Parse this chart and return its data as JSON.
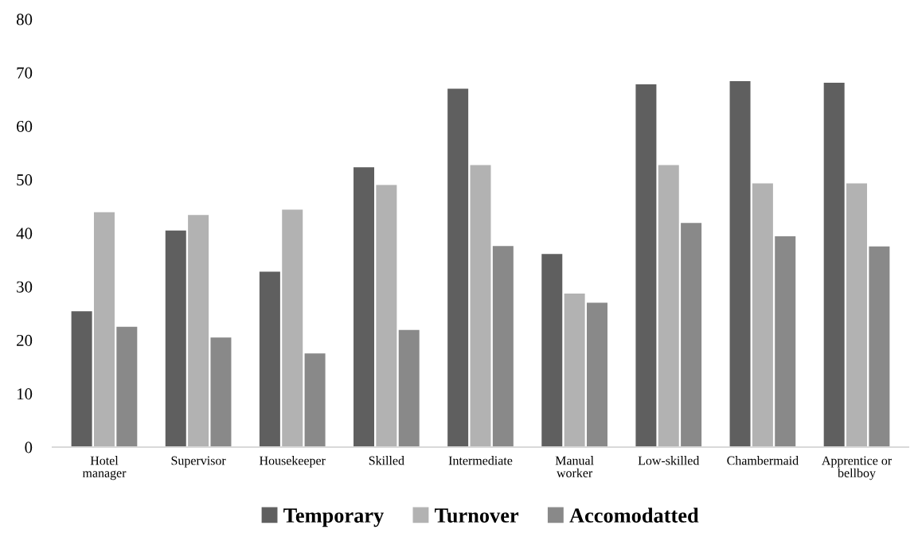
{
  "chart_data": {
    "type": "bar",
    "categories": [
      "Hotel\nmanager",
      "Supervisor",
      "Housekeeper",
      "Skilled",
      "Intermediate",
      "Manual\nworker",
      "Low-skilled",
      "Chambermaid",
      "Apprentice or\nbellboy"
    ],
    "series": [
      {
        "name": "Temporary",
        "color": "#5f5f5f",
        "values": [
          25.4,
          40.5,
          32.8,
          52.3,
          67.0,
          36.1,
          67.8,
          68.4,
          68.1
        ]
      },
      {
        "name": "Turnover",
        "color": "#b2b2b2",
        "values": [
          43.9,
          43.4,
          44.4,
          49.0,
          52.7,
          28.7,
          52.7,
          49.3,
          49.3
        ]
      },
      {
        "name": "Accomodatted",
        "color": "#898989",
        "values": [
          22.5,
          20.5,
          17.5,
          21.9,
          37.6,
          27.0,
          41.9,
          39.4,
          37.5
        ]
      }
    ],
    "ylim": [
      0,
      80
    ],
    "yticks": [
      0,
      10,
      20,
      30,
      40,
      50,
      60,
      70,
      80
    ],
    "grid": false,
    "legend": "bottom"
  }
}
